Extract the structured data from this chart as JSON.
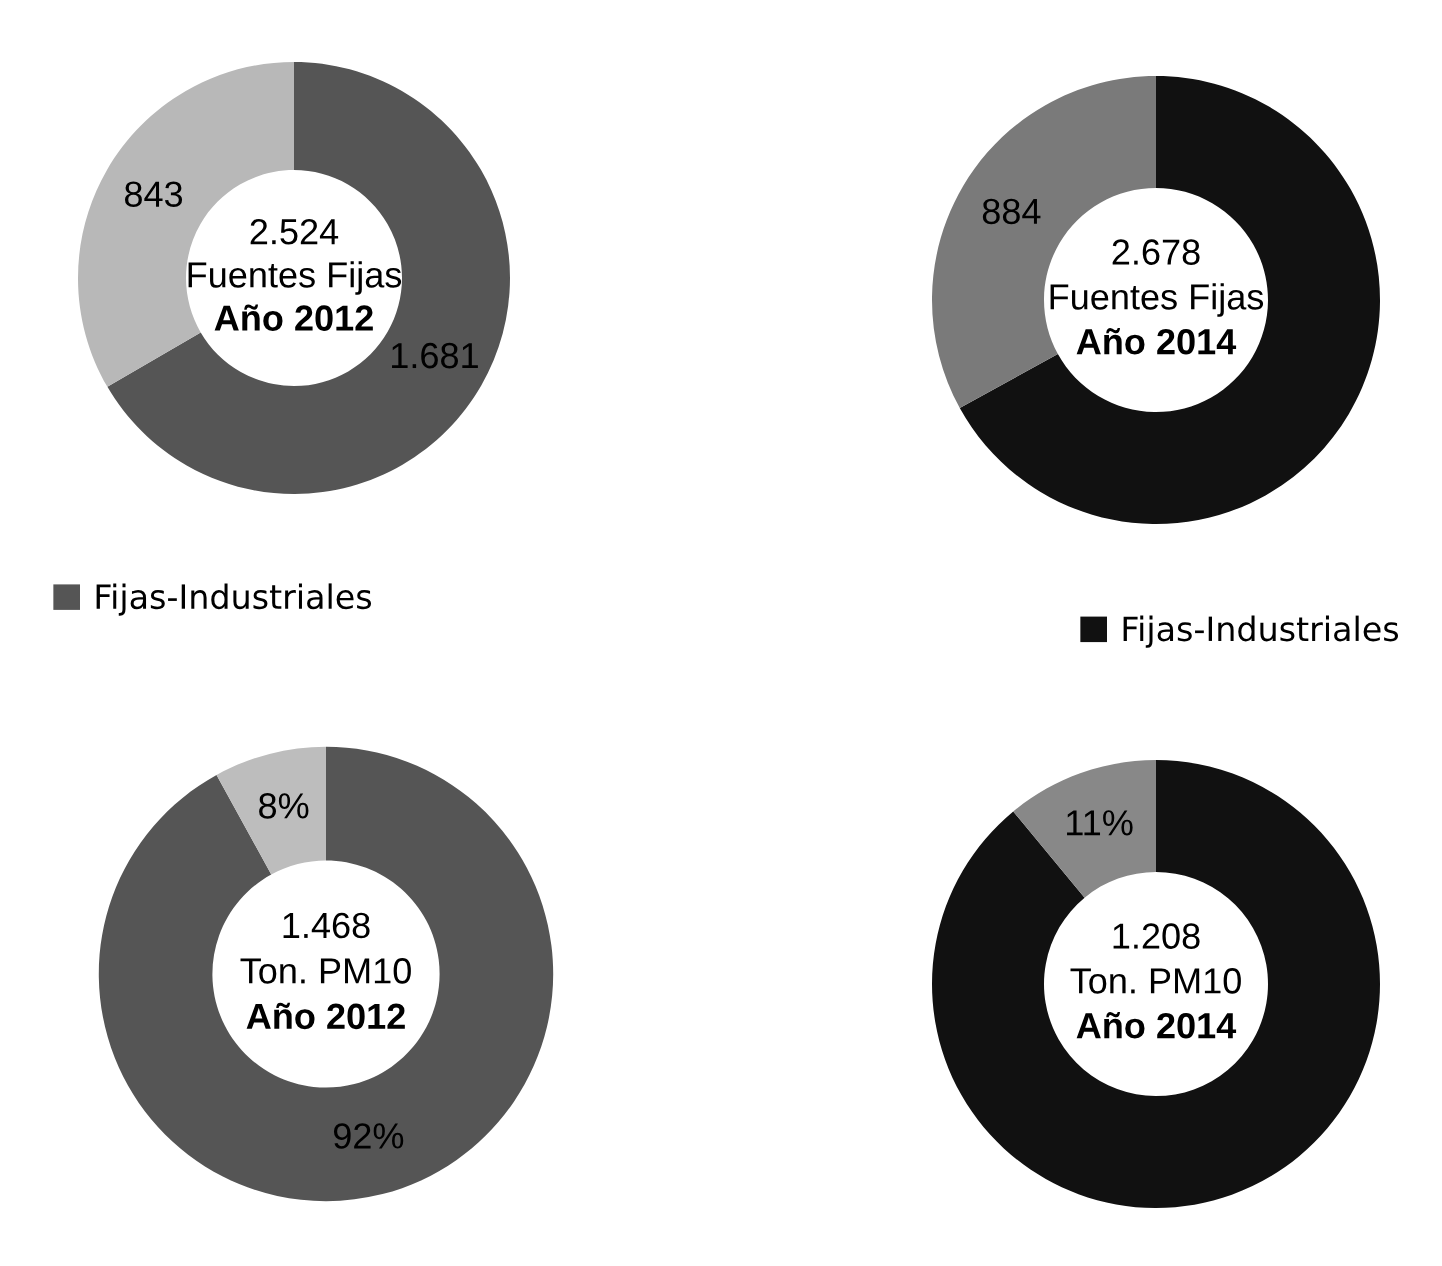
{
  "chart_data": [
    {
      "type": "donut",
      "categories": [
        "Fijas-Industriales",
        null
      ],
      "values": [
        1681,
        843
      ],
      "colors": [
        "#555555",
        "#b8b8b8"
      ],
      "value_labels": [
        "1.681",
        "843"
      ],
      "annotations": [
        "2.524",
        "Fuentes Fijas",
        "Año 2012"
      ],
      "legend": "bottom left"
    },
    {
      "type": "donut",
      "categories": [
        "Fijas-Industriales",
        null
      ],
      "values": [
        1794,
        884
      ],
      "colors": [
        "#111111",
        "#7a7a7a"
      ],
      "value_labels": [
        null,
        "884"
      ],
      "annotations": [
        "2.678",
        "Fuentes Fijas",
        "Año 2014"
      ],
      "legend": "bottom right"
    },
    {
      "type": "donut",
      "categories": [
        null,
        null
      ],
      "values": [
        92,
        8
      ],
      "colors": [
        "#555555",
        "#bdbdbd"
      ],
      "value_labels": [
        "92%",
        "8%"
      ],
      "annotations": [
        "1.468",
        "Ton. PM10",
        "Año 2012"
      ]
    },
    {
      "type": "donut",
      "categories": [
        null,
        null
      ],
      "values": [
        89,
        11
      ],
      "colors": [
        "#111111",
        "#888888"
      ],
      "value_labels": [
        null,
        "11%"
      ],
      "annotations": [
        "1.208",
        "Ton. PM10",
        "Año 2014"
      ]
    }
  ]
}
